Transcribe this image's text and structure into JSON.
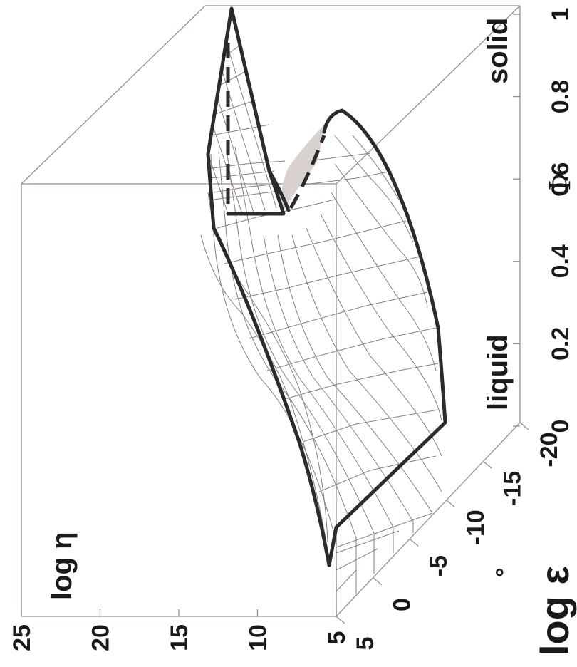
{
  "chart_data": {
    "type": "surface",
    "orientation": "rotated 90° counter-clockwise",
    "axes": {
      "eta": {
        "label": "log η",
        "ticks": [
          "5",
          "10",
          "15",
          "20",
          "25"
        ],
        "range": [
          5,
          25
        ]
      },
      "epsilon": {
        "label": "log ε",
        "ticks": [
          "5",
          "0",
          "-5",
          "-10",
          "-15",
          "-20"
        ],
        "range": [
          -20,
          5
        ]
      },
      "phi": {
        "label": "Φ",
        "ticks": [
          "0",
          "0.2",
          "0.4",
          "0.6",
          "0.8",
          "1"
        ],
        "range": [
          0,
          1
        ]
      }
    },
    "annotations": {
      "liquid": "liquid",
      "solid": "solid",
      "dot": "°"
    },
    "grid": true
  }
}
